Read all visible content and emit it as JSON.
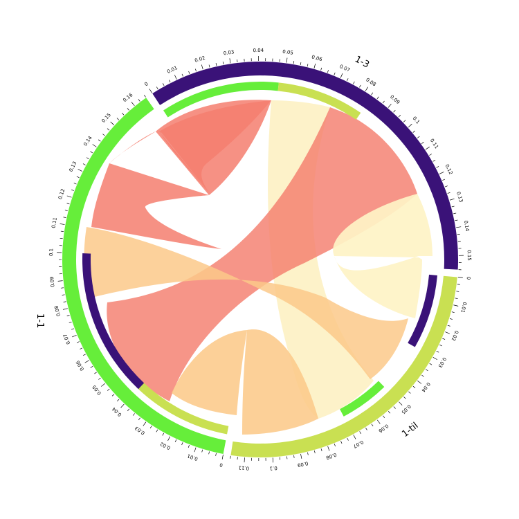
{
  "chart_data": {
    "type": "chord",
    "sectors": [
      {
        "id": "1-3",
        "label": "1-3",
        "color": "#3a1278",
        "max": 0.155,
        "ticks": [
          "0",
          "0.01",
          "0.02",
          "0.03",
          "0.04",
          "0.05",
          "0.06",
          "0.07",
          "0.08",
          "0.09",
          "0.1",
          "0.11",
          "0.12",
          "0.13",
          "0.14",
          "0.15"
        ],
        "inner_track": [
          {
            "to": "1-1",
            "color": "#66ee3a",
            "value": 0.048
          },
          {
            "to": "1-til",
            "color": "#c9e052",
            "value": 0.035
          },
          {
            "to": "1-3",
            "color": "#ffffff",
            "value": 0.072
          }
        ]
      },
      {
        "id": "1-til",
        "label": "1-til",
        "color": "#c9e052",
        "max": 0.115,
        "ticks": [
          "0",
          "0.01",
          "0.02",
          "0.03",
          "0.04",
          "0.05",
          "0.06",
          "0.07",
          "0.08",
          "0.09",
          "0.1",
          "0.11"
        ],
        "inner_track": [
          {
            "to": "1-3",
            "color": "#3a1278",
            "value": 0.03
          },
          {
            "to": "1-til",
            "color": "#ffffff",
            "value": 0.02
          },
          {
            "to": "1-1",
            "color": "#66ee3a",
            "value": 0.02
          },
          {
            "to": "1-til",
            "color": "#ffffff",
            "value": 0.045
          }
        ]
      },
      {
        "id": "1-1",
        "label": "1-1",
        "color": "#66ee3a",
        "max": 0.165,
        "ticks": [
          "0",
          "0.01",
          "0.02",
          "0.03",
          "0.04",
          "0.05",
          "0.06",
          "0.07",
          "0.08",
          "0.09",
          "0.1",
          "0.11",
          "0.12",
          "0.13",
          "0.14",
          "0.15",
          "0.16"
        ],
        "inner_track": [
          {
            "to": "1-til",
            "color": "#c9e052",
            "value": 0.04
          },
          {
            "to": "1-3",
            "color": "#3a1278",
            "value": 0.06
          },
          {
            "to": "1-1",
            "color": "#ffffff",
            "value": 0.065
          }
        ]
      }
    ],
    "links": [
      {
        "from": "1-3",
        "to": "1-3",
        "value": 0.07,
        "color": "#f5a3a0"
      },
      {
        "from": "1-3",
        "to": "1-til",
        "value": 0.035,
        "color": "#fdf3c8"
      },
      {
        "from": "1-3",
        "to": "1-1",
        "value": 0.048,
        "color": "#f47e6e"
      },
      {
        "from": "1-til",
        "to": "1-til",
        "value": 0.045,
        "color": "#fef5cc"
      },
      {
        "from": "1-til",
        "to": "1-1",
        "value": 0.02,
        "color": "#fcd09a"
      },
      {
        "from": "1-1",
        "to": "1-1",
        "value": 0.065,
        "color": "#f58a7c"
      },
      {
        "from": "1-1",
        "to": "1-til",
        "value": 0.04,
        "color": "#fcce95"
      }
    ]
  }
}
